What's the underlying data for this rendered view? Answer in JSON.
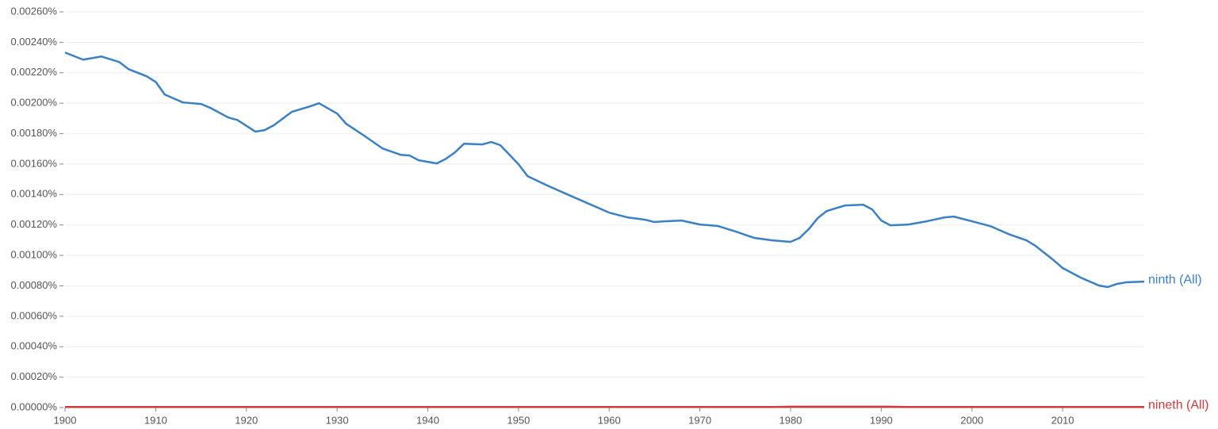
{
  "chart_data": {
    "type": "line",
    "x": [
      1900,
      1902,
      1904,
      1906,
      1907,
      1909,
      1910,
      1911,
      1913,
      1915,
      1916,
      1918,
      1919,
      1921,
      1922,
      1923,
      1925,
      1927,
      1928,
      1930,
      1931,
      1933,
      1935,
      1937,
      1938,
      1939,
      1941,
      1942,
      1943,
      1944,
      1946,
      1947,
      1948,
      1950,
      1951,
      1953,
      1955,
      1957,
      1959,
      1960,
      1962,
      1964,
      1965,
      1966,
      1968,
      1970,
      1972,
      1974,
      1976,
      1978,
      1980,
      1981,
      1982,
      1983,
      1984,
      1986,
      1988,
      1989,
      1990,
      1991,
      1993,
      1995,
      1997,
      1998,
      2000,
      2002,
      2004,
      2006,
      2007,
      2009,
      2010,
      2012,
      2014,
      2015,
      2016,
      2017,
      2019
    ],
    "series": [
      {
        "name": "ninth (All)",
        "color": "#3a80c6",
        "values": [
          0.002333,
          0.002286,
          0.002307,
          0.00227,
          0.002224,
          0.002177,
          0.00214,
          0.002057,
          0.002005,
          0.001995,
          0.00197,
          0.001906,
          0.00189,
          0.001813,
          0.001823,
          0.001854,
          0.001943,
          0.001979,
          0.002,
          0.001932,
          0.001865,
          0.001786,
          0.001703,
          0.001661,
          0.001656,
          0.001625,
          0.001604,
          0.001635,
          0.001677,
          0.001734,
          0.001729,
          0.001745,
          0.001724,
          0.001599,
          0.001521,
          0.001464,
          0.001411,
          0.001359,
          0.001307,
          0.001281,
          0.00125,
          0.001234,
          0.001219,
          0.001224,
          0.001229,
          0.001203,
          0.001193,
          0.001156,
          0.001115,
          0.001099,
          0.001089,
          0.001115,
          0.001172,
          0.001245,
          0.001292,
          0.001328,
          0.001333,
          0.001302,
          0.001229,
          0.001198,
          0.001203,
          0.001224,
          0.00125,
          0.001255,
          0.001224,
          0.001193,
          0.001141,
          0.001099,
          0.001063,
          0.000969,
          0.000917,
          0.000854,
          0.000802,
          0.000792,
          0.000813,
          0.000823,
          0.000828
        ]
      },
      {
        "name": "nineth (All)",
        "color": "#d03a3c",
        "values": [
          4e-06,
          4e-06,
          4e-06,
          4e-06,
          4e-06,
          4e-06,
          4e-06,
          4e-06,
          4e-06,
          4e-06,
          4e-06,
          4e-06,
          4e-06,
          4e-06,
          4e-06,
          4e-06,
          4e-06,
          4e-06,
          4e-06,
          4e-06,
          4e-06,
          4e-06,
          4e-06,
          4e-06,
          4e-06,
          4e-06,
          4e-06,
          4e-06,
          4e-06,
          4e-06,
          4e-06,
          4e-06,
          4e-06,
          4e-06,
          4e-06,
          4e-06,
          4e-06,
          4e-06,
          4e-06,
          4e-06,
          4e-06,
          4e-06,
          4e-06,
          4e-06,
          4e-06,
          4e-06,
          4e-06,
          4e-06,
          4e-06,
          4e-06,
          6e-06,
          6e-06,
          6e-06,
          6e-06,
          6e-06,
          6e-06,
          6e-06,
          6e-06,
          6e-06,
          6e-06,
          4e-06,
          4e-06,
          4e-06,
          4e-06,
          4e-06,
          4e-06,
          4e-06,
          4e-06,
          4e-06,
          4e-06,
          4e-06,
          4e-06,
          4e-06,
          4e-06,
          4e-06,
          4e-06,
          4e-06
        ]
      }
    ],
    "xlim": [
      1900,
      2019
    ],
    "xticks": [
      1900,
      1910,
      1920,
      1930,
      1940,
      1950,
      1960,
      1970,
      1980,
      1990,
      2000,
      2010
    ],
    "ylim": [
      0,
      0.0026
    ],
    "yticks": [
      {
        "value": 0,
        "label": "0.00000%"
      },
      {
        "value": 0.0002,
        "label": "0.00020%"
      },
      {
        "value": 0.0004,
        "label": "0.00040%"
      },
      {
        "value": 0.0006,
        "label": "0.00060%"
      },
      {
        "value": 0.0008,
        "label": "0.00080%"
      },
      {
        "value": 0.001,
        "label": "0.00100%"
      },
      {
        "value": 0.0012,
        "label": "0.00120%"
      },
      {
        "value": 0.0014,
        "label": "0.00140%"
      },
      {
        "value": 0.0016,
        "label": "0.00160%"
      },
      {
        "value": 0.0018,
        "label": "0.00180%"
      },
      {
        "value": 0.002,
        "label": "0.00200%"
      },
      {
        "value": 0.0022,
        "label": "0.00220%"
      },
      {
        "value": 0.0024,
        "label": "0.00240%"
      },
      {
        "value": 0.0026,
        "label": "0.00260%"
      }
    ],
    "grid": true
  }
}
